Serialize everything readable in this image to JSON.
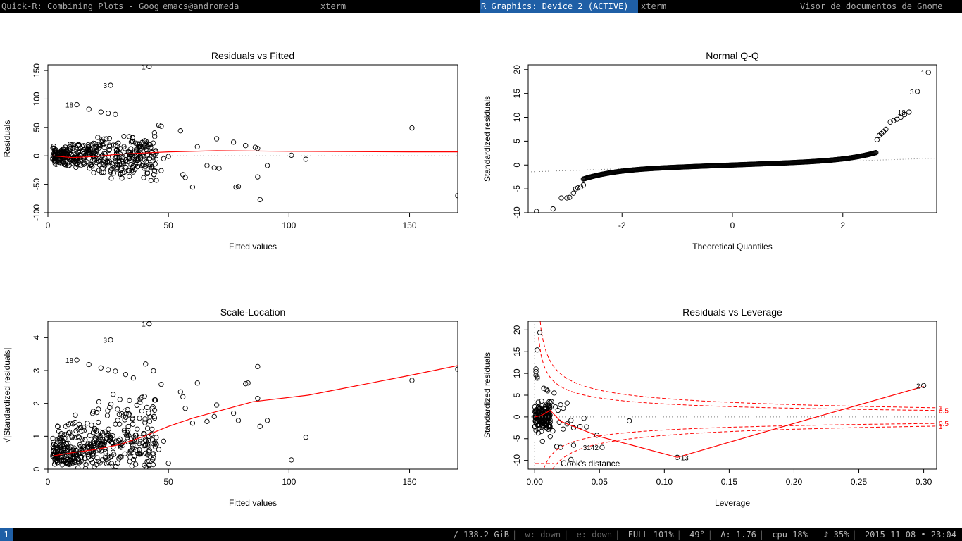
{
  "window_tabs": [
    {
      "label": "Quick-R: Combining Plots - Googl",
      "active": false
    },
    {
      "label": "emacs@andromeda",
      "active": false
    },
    {
      "label": "xterm",
      "active": false
    },
    {
      "label": "R Graphics: Device 2 (ACTIVE)",
      "active": true
    },
    {
      "label": "xterm",
      "active": false
    },
    {
      "label": "Visor de documentos de Gnome",
      "active": false
    }
  ],
  "status_bar": {
    "workspace": "1",
    "disk": "/ 138.2 GiB",
    "wired": "w: down",
    "ethernet": "e: down",
    "battery": "FULL 101%",
    "temperature": "49°",
    "load": "Δ: 1.76",
    "cpu": "cpu 18%",
    "volume": "♪ 35%",
    "datetime": "2015-11-08 • 23:04"
  },
  "colors": {
    "points": "#000000",
    "smooth_line": "#ff0000",
    "cooks_distance": "#ff0000",
    "reference_line": "#808080",
    "active_tab": "#1f5fa6"
  },
  "chart_data": [
    {
      "type": "scatter",
      "title": "Residuals vs Fitted",
      "xlabel": "Fitted values",
      "ylabel": "Residuals",
      "xlim": [
        0,
        170
      ],
      "ylim": [
        -100,
        160
      ],
      "xticks": [
        0,
        50,
        100,
        150
      ],
      "yticks": [
        -100,
        -50,
        0,
        50,
        100,
        150
      ],
      "point_labels": [
        {
          "label": "1",
          "x": 42,
          "y": 157
        },
        {
          "label": "3",
          "x": 26,
          "y": 124
        },
        {
          "label": "18",
          "x": 12,
          "y": 90
        }
      ],
      "smooth_line": [
        [
          2,
          0
        ],
        [
          10,
          -3
        ],
        [
          20,
          -1
        ],
        [
          30,
          3
        ],
        [
          40,
          5
        ],
        [
          50,
          7
        ],
        [
          70,
          9
        ],
        [
          100,
          8
        ],
        [
          150,
          7
        ],
        [
          170,
          7
        ]
      ],
      "reference_hline": 0,
      "cloud": {
        "x_range": [
          2,
          45
        ],
        "y_spread": 25
      },
      "points": [
        [
          42,
          157
        ],
        [
          26,
          124
        ],
        [
          12,
          90
        ],
        [
          17,
          82
        ],
        [
          22,
          77
        ],
        [
          25,
          75
        ],
        [
          28,
          73
        ],
        [
          46,
          54
        ],
        [
          47,
          52
        ],
        [
          55,
          44
        ],
        [
          70,
          30
        ],
        [
          62,
          16
        ],
        [
          77,
          24
        ],
        [
          82,
          18
        ],
        [
          86,
          15
        ],
        [
          87,
          13
        ],
        [
          151,
          49
        ],
        [
          101,
          1
        ],
        [
          107,
          -6
        ],
        [
          91,
          -17
        ],
        [
          87,
          -37
        ],
        [
          88,
          -77
        ],
        [
          79,
          -54
        ],
        [
          78,
          -55
        ],
        [
          71,
          -22
        ],
        [
          69,
          -21
        ],
        [
          66,
          -17
        ],
        [
          60,
          -55
        ],
        [
          57,
          -38
        ],
        [
          56,
          -33
        ],
        [
          50,
          -1
        ],
        [
          48,
          -5
        ],
        [
          47,
          -26
        ],
        [
          45,
          -43
        ],
        [
          44,
          -33
        ],
        [
          40,
          -22
        ],
        [
          38,
          -14
        ],
        [
          170,
          -70
        ],
        [
          35,
          -20
        ],
        [
          33,
          -10
        ],
        [
          40,
          15
        ],
        [
          42,
          20
        ],
        [
          45,
          5
        ],
        [
          38,
          10
        ]
      ]
    },
    {
      "type": "scatter",
      "title": "Normal Q-Q",
      "xlabel": "Theoretical Quantiles",
      "ylabel": "Standardized residuals",
      "xlim": [
        -3.7,
        3.7
      ],
      "ylim": [
        -10,
        21
      ],
      "xticks": [
        -2,
        0,
        2
      ],
      "yticks": [
        -10,
        -5,
        0,
        5,
        10,
        15,
        20
      ],
      "point_labels": [
        {
          "label": "1",
          "x": 3.55,
          "y": 19.4
        },
        {
          "label": "3",
          "x": 3.35,
          "y": 15.4
        },
        {
          "label": "18",
          "x": 3.2,
          "y": 11.1
        }
      ],
      "reference_line": {
        "slope": 0.39,
        "intercept": 0
      },
      "points": [
        [
          -3.55,
          -9.7
        ],
        [
          -3.25,
          -9.2
        ],
        [
          -3.1,
          -6.9
        ],
        [
          -3.0,
          -6.9
        ],
        [
          -2.95,
          -6.8
        ],
        [
          -2.88,
          -5.9
        ],
        [
          -2.84,
          -5.0
        ],
        [
          -2.8,
          -4.8
        ],
        [
          -2.75,
          -4.6
        ],
        [
          -2.7,
          -4.2
        ],
        [
          3.55,
          19.4
        ],
        [
          3.35,
          15.4
        ],
        [
          3.2,
          11.1
        ],
        [
          3.12,
          10.6
        ],
        [
          3.05,
          10.0
        ],
        [
          2.98,
          9.6
        ],
        [
          2.92,
          9.3
        ],
        [
          2.86,
          9.0
        ],
        [
          2.78,
          7.5
        ],
        [
          2.74,
          7.0
        ],
        [
          2.7,
          6.6
        ],
        [
          2.66,
          6.2
        ],
        [
          2.62,
          5.3
        ]
      ]
    },
    {
      "type": "scatter",
      "title": "Scale-Location",
      "xlabel": "Fitted values",
      "ylabel": "√|Standardized residuals|",
      "xlim": [
        0,
        170
      ],
      "ylim": [
        0,
        4.5
      ],
      "xticks": [
        0,
        50,
        100,
        150
      ],
      "yticks": [
        0,
        1,
        2,
        3,
        4
      ],
      "point_labels": [
        {
          "label": "1",
          "x": 42,
          "y": 4.42
        },
        {
          "label": "3",
          "x": 26,
          "y": 3.93
        },
        {
          "label": "18",
          "x": 12,
          "y": 3.32
        }
      ],
      "smooth_line": [
        [
          2,
          0.4
        ],
        [
          10,
          0.5
        ],
        [
          20,
          0.6
        ],
        [
          30,
          0.75
        ],
        [
          40,
          1.0
        ],
        [
          50,
          1.3
        ],
        [
          60,
          1.55
        ],
        [
          70,
          1.75
        ],
        [
          85,
          2.05
        ],
        [
          108,
          2.25
        ],
        [
          150,
          2.85
        ],
        [
          170,
          3.15
        ]
      ],
      "points": [
        [
          42,
          4.42
        ],
        [
          26,
          3.93
        ],
        [
          12,
          3.32
        ],
        [
          17,
          3.18
        ],
        [
          22,
          3.08
        ],
        [
          25,
          3.02
        ],
        [
          28,
          2.98
        ],
        [
          47,
          2.58
        ],
        [
          62,
          2.62
        ],
        [
          55,
          2.35
        ],
        [
          56,
          2.2
        ],
        [
          70,
          1.95
        ],
        [
          77,
          1.7
        ],
        [
          82,
          2.6
        ],
        [
          83,
          2.62
        ],
        [
          87,
          3.12
        ],
        [
          87,
          2.15
        ],
        [
          91,
          1.48
        ],
        [
          88,
          1.3
        ],
        [
          79,
          1.48
        ],
        [
          69,
          1.6
        ],
        [
          66,
          1.45
        ],
        [
          60,
          1.4
        ],
        [
          57,
          1.85
        ],
        [
          50,
          0.18
        ],
        [
          101,
          0.28
        ],
        [
          107,
          0.97
        ],
        [
          151,
          2.7
        ],
        [
          170,
          3.04
        ],
        [
          45,
          0.75
        ],
        [
          46,
          0.6
        ],
        [
          48,
          0.85
        ],
        [
          44,
          1.6
        ],
        [
          38,
          1.55
        ]
      ]
    },
    {
      "type": "scatter",
      "title": "Residuals vs Leverage",
      "xlabel": "Leverage",
      "ylabel": "Standardized residuals",
      "xlim": [
        -0.005,
        0.31
      ],
      "ylim": [
        -12,
        22
      ],
      "xticks": [
        0.0,
        0.05,
        0.1,
        0.15,
        0.2,
        0.25,
        0.3
      ],
      "xtick_labels": [
        "0.00",
        "0.05",
        "0.10",
        "0.15",
        "0.20",
        "0.25",
        "0.30"
      ],
      "yticks": [
        -10,
        -5,
        0,
        5,
        10,
        15,
        20
      ],
      "point_labels": [
        {
          "label": "2",
          "x": 0.3,
          "y": 7.2
        },
        {
          "label": "13",
          "x": 0.11,
          "y": -9.3
        },
        {
          "label": "3142",
          "x": 0.052,
          "y": -7.0
        }
      ],
      "cooks_levels": [
        "0.5",
        "1"
      ],
      "legend": {
        "label": "Cook's distance",
        "position": "bottom-left"
      },
      "smooth_line": [
        [
          0.0,
          0.0
        ],
        [
          0.005,
          0.3
        ],
        [
          0.012,
          1.5
        ],
        [
          0.02,
          -1.0
        ],
        [
          0.05,
          -4.5
        ],
        [
          0.11,
          -9.3
        ],
        [
          0.2,
          -1.5
        ],
        [
          0.3,
          7.0
        ]
      ],
      "points": [
        [
          0.3,
          7.2
        ],
        [
          0.11,
          -9.3
        ],
        [
          0.052,
          -7.0
        ],
        [
          0.073,
          -0.9
        ],
        [
          0.048,
          -4.2
        ],
        [
          0.04,
          -2.3
        ],
        [
          0.038,
          -0.3
        ],
        [
          0.035,
          -2.2
        ],
        [
          0.02,
          2.8
        ],
        [
          0.022,
          2.0
        ],
        [
          0.025,
          3.2
        ],
        [
          0.028,
          -0.8
        ],
        [
          0.03,
          -2.5
        ],
        [
          0.03,
          -6.5
        ],
        [
          0.004,
          19.4
        ],
        [
          0.002,
          15.4
        ],
        [
          0.001,
          11.0
        ],
        [
          0.001,
          10.4
        ],
        [
          0.001,
          9.6
        ],
        [
          0.002,
          9.2
        ],
        [
          0.002,
          8.9
        ],
        [
          0.007,
          6.6
        ],
        [
          0.009,
          6.3
        ],
        [
          0.01,
          6.0
        ],
        [
          0.015,
          5.5
        ],
        [
          0.013,
          3.5
        ],
        [
          0.016,
          2.3
        ],
        [
          0.018,
          1.5
        ],
        [
          0.006,
          -5.6
        ],
        [
          0.02,
          -7.0
        ],
        [
          0.028,
          -9.8
        ],
        [
          0.017,
          -6.8
        ],
        [
          0.012,
          -4.5
        ],
        [
          0.014,
          -3.2
        ],
        [
          0.022,
          -2.8
        ],
        [
          0.025,
          -1.6
        ],
        [
          0.019,
          -1.2
        ]
      ]
    }
  ]
}
